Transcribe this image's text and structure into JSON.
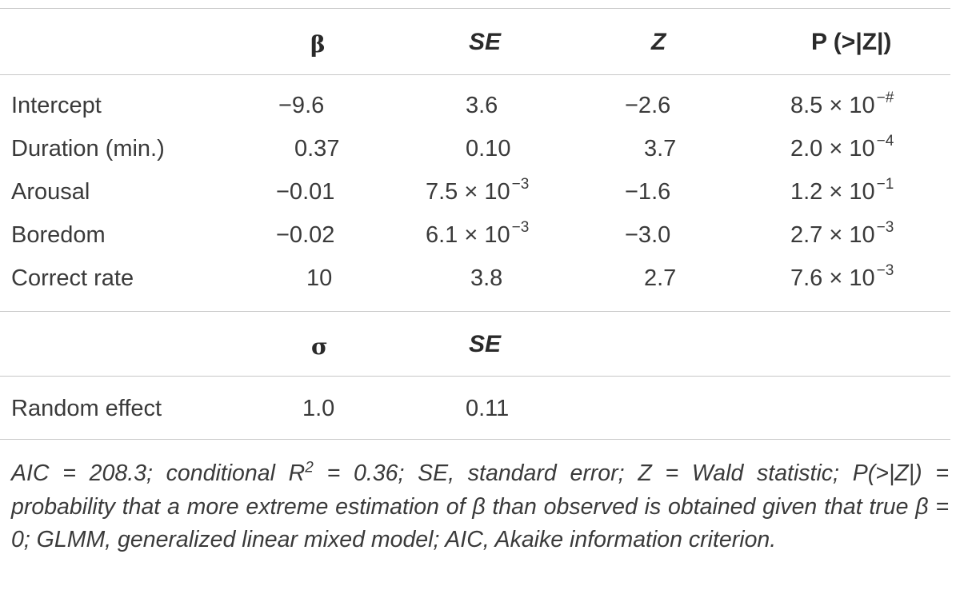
{
  "fixed_effects": {
    "headers": {
      "beta": "β",
      "se": "SE",
      "z": "Z",
      "p": "P (>|Z|)"
    },
    "rows": [
      {
        "label": "Intercept",
        "beta": "−9.6",
        "se": "3.6",
        "se_exp": "",
        "z": "−2.6",
        "p": "8.5 × 10",
        "p_exp": "−#"
      },
      {
        "label": "Duration (min.)",
        "beta": "0.37",
        "se": "0.10",
        "se_exp": "",
        "z": "3.7",
        "p": "2.0 × 10",
        "p_exp": "−4"
      },
      {
        "label": "Arousal",
        "beta": "−0.01",
        "se": "7.5 × 10",
        "se_exp": "−3",
        "z": "−1.6",
        "p": "1.2 × 10",
        "p_exp": "−1"
      },
      {
        "label": "Boredom",
        "beta": "−0.02",
        "se": "6.1 × 10",
        "se_exp": "−3",
        "z": "−3.0",
        "p": "2.7 × 10",
        "p_exp": "−3"
      },
      {
        "label": "Correct rate",
        "beta": "10",
        "se": "3.8",
        "se_exp": "",
        "z": "2.7",
        "p": "7.6 × 10",
        "p_exp": "−3"
      }
    ]
  },
  "random_effects": {
    "headers": {
      "sigma": "σ",
      "se": "SE"
    },
    "rows": [
      {
        "label": "Random effect",
        "sigma": "1.0",
        "se": "0.11"
      }
    ]
  },
  "footnote": {
    "part1": "AIC = 208.3; conditional R",
    "r_sup": "2",
    "part2": " = 0.36; SE, standard error; Z = Wald statistic; P(>|Z|) = probability that a more extreme estimation of β than observed is obtained given that true β = 0; GLMM, generalized linear mixed model; AIC, Akaike information criterion."
  }
}
